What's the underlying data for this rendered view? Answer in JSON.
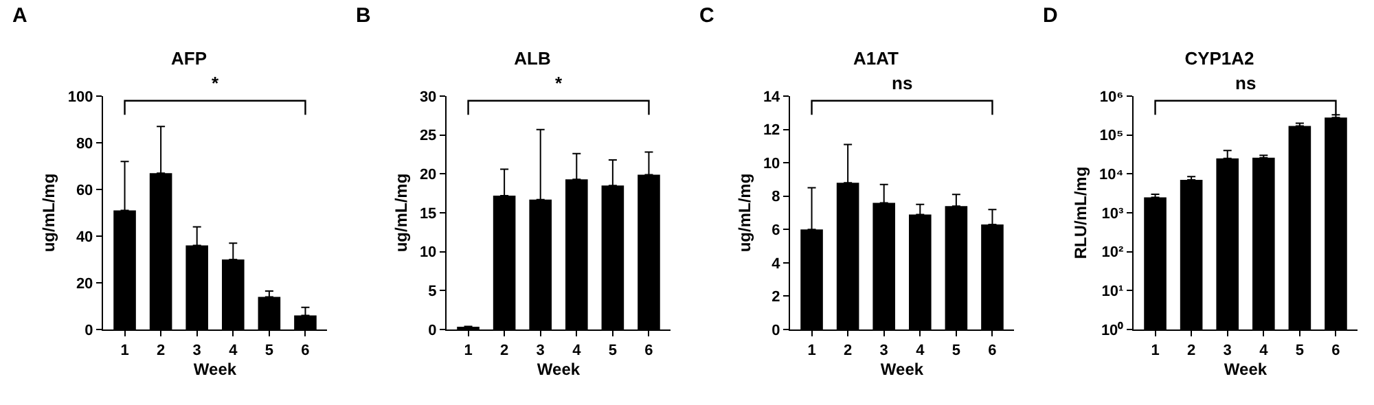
{
  "chart_data": [
    {
      "type": "bar",
      "title": "AFP",
      "xlabel": "Week",
      "ylabel": "ug/mL/mg",
      "annotations": [
        "A",
        "*"
      ],
      "categories": [
        "1",
        "2",
        "3",
        "4",
        "5",
        "6"
      ],
      "color": "#000000",
      "values": [
        51,
        67,
        36,
        30,
        14,
        6
      ],
      "errors": [
        [
          51,
          72
        ],
        [
          67,
          87
        ],
        [
          36,
          44
        ],
        [
          30,
          37
        ],
        [
          14,
          16.5
        ],
        [
          6,
          9.5
        ]
      ],
      "ylim": [
        0,
        100
      ],
      "yticks": [
        0,
        20,
        40,
        60,
        80,
        100
      ],
      "grid": false,
      "legend": false
    },
    {
      "type": "bar",
      "title": "ALB",
      "xlabel": "Week",
      "ylabel": "ug/mL/mg",
      "annotations": [
        "B",
        "*"
      ],
      "categories": [
        "1",
        "2",
        "3",
        "4",
        "5",
        "6"
      ],
      "color": "#000000",
      "values": [
        0.3,
        17.2,
        16.7,
        19.3,
        18.5,
        19.9
      ],
      "errors": [
        [
          0.3,
          0.4
        ],
        [
          17.2,
          20.6
        ],
        [
          16.7,
          25.7
        ],
        [
          19.3,
          22.6
        ],
        [
          18.5,
          21.8
        ],
        [
          19.9,
          22.8
        ]
      ],
      "ylim": [
        0,
        30
      ],
      "yticks": [
        0,
        5,
        10,
        15,
        20,
        25,
        30
      ],
      "grid": false,
      "legend": false
    },
    {
      "type": "bar",
      "title": "A1AT",
      "xlabel": "Week",
      "ylabel": "ug/mL/mg",
      "annotations": [
        "C",
        "ns"
      ],
      "categories": [
        "1",
        "2",
        "3",
        "4",
        "5",
        "6"
      ],
      "color": "#000000",
      "values": [
        6.0,
        8.8,
        7.6,
        6.9,
        7.4,
        6.3
      ],
      "errors": [
        [
          6.0,
          8.5
        ],
        [
          8.8,
          11.1
        ],
        [
          7.6,
          8.7
        ],
        [
          6.9,
          7.5
        ],
        [
          7.4,
          8.1
        ],
        [
          6.3,
          7.2
        ]
      ],
      "ylim": [
        0,
        14
      ],
      "yticks": [
        0,
        2,
        4,
        6,
        8,
        10,
        12,
        14
      ],
      "grid": false,
      "legend": false
    },
    {
      "type": "bar",
      "title": "CYP1A2",
      "xlabel": "Week",
      "ylabel": "RLU/mL/mg",
      "annotations": [
        "D",
        "ns"
      ],
      "categories": [
        "1",
        "2",
        "3",
        "4",
        "5",
        "6"
      ],
      "color": "#000000",
      "values": [
        2500,
        7000,
        25000,
        26000,
        170000,
        280000
      ],
      "errors": [
        [
          2500,
          3000
        ],
        [
          7000,
          8500
        ],
        [
          25000,
          40000
        ],
        [
          26000,
          30000
        ],
        [
          170000,
          200000
        ],
        [
          280000,
          330000
        ]
      ],
      "log": true,
      "ylim": [
        1,
        1000000
      ],
      "yticks": [
        {
          "value": 1,
          "label": "10⁰"
        },
        {
          "value": 10,
          "label": "10¹"
        },
        {
          "value": 100,
          "label": "10²"
        },
        {
          "value": 1000,
          "label": "10³"
        },
        {
          "value": 10000,
          "label": "10⁴"
        },
        {
          "value": 100000,
          "label": "10⁵"
        },
        {
          "value": 1000000,
          "label": "10⁶"
        }
      ],
      "grid": false,
      "legend": false
    }
  ]
}
